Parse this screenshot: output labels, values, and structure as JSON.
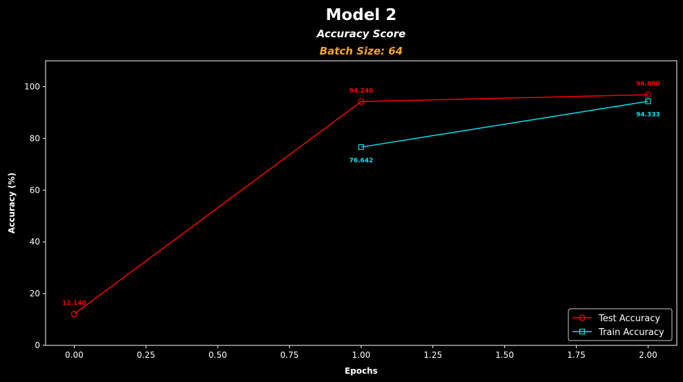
{
  "chart_data": {
    "type": "line",
    "title": "Model 2",
    "subtitle": "Accuracy Score",
    "subtitle2": "Batch Size: 64",
    "xlabel": "Epochs",
    "ylabel": "Accuracy (%)",
    "xlim": [
      -0.1,
      2.1
    ],
    "ylim": [
      0,
      110
    ],
    "xticks": [
      "0.00",
      "0.25",
      "0.50",
      "0.75",
      "1.00",
      "1.25",
      "1.50",
      "1.75",
      "2.00"
    ],
    "yticks": [
      "0",
      "20",
      "40",
      "60",
      "80",
      "100"
    ],
    "grid": false,
    "legend_position": "bottom-right",
    "colors": {
      "background": "#000000",
      "foreground": "#ffffff",
      "subtitle2": "#f5a623"
    },
    "series": [
      {
        "name": "Test Accuracy",
        "color": "#ff0000",
        "marker": "circle",
        "x": [
          0,
          1,
          2
        ],
        "values": [
          12.14,
          94.24,
          96.89
        ],
        "labels": [
          "12.140",
          "94.240",
          "96.890"
        ],
        "label_position": "above"
      },
      {
        "name": "Train Accuracy",
        "color": "#00e5ee",
        "marker": "square",
        "x": [
          1,
          2
        ],
        "values": [
          76.642,
          94.333
        ],
        "labels": [
          "76.642",
          "94.333"
        ],
        "label_position": "below"
      }
    ]
  }
}
